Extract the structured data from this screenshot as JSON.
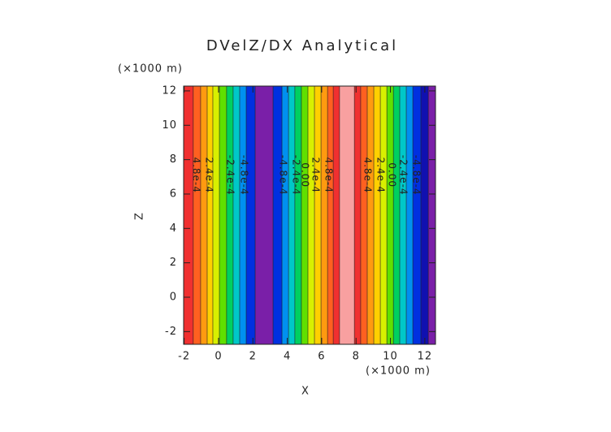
{
  "chart_data": {
    "type": "contour",
    "title": "DVelZ/DX Analytical",
    "xlabel": "X",
    "ylabel": "Z",
    "xunit": "(×1000 m)",
    "yunit": "(×1000 m)",
    "xlim": [
      -2.03,
      12.62
    ],
    "ylim": [
      -2.74,
      12.28
    ],
    "xticks": [
      -2,
      0,
      2,
      4,
      6,
      8,
      10,
      12
    ],
    "yticks": [
      -2,
      0,
      2,
      4,
      6,
      8,
      10,
      12
    ],
    "band_edges": [
      -2.03,
      -1.47,
      -1.04,
      -0.66,
      -0.33,
      0.05,
      0.47,
      0.85,
      1.23,
      1.61,
      2.13,
      3.17,
      3.69,
      4.07,
      4.44,
      4.82,
      5.2,
      5.58,
      5.96,
      6.34,
      6.67,
      7.04,
      7.9,
      8.27,
      8.65,
      9.03,
      9.41,
      9.79,
      10.17,
      10.54,
      10.92,
      11.3,
      11.77,
      12.2,
      12.62
    ],
    "band_colors": [
      "#f03030",
      "#ff6020",
      "#ff9a10",
      "#ffd000",
      "#d8f000",
      "#60e000",
      "#00d060",
      "#00c8c8",
      "#0090f0",
      "#0030e0",
      "#7a1fa8",
      "#0030e0",
      "#0090f0",
      "#00c8c8",
      "#00d060",
      "#60e000",
      "#d8f000",
      "#ffd000",
      "#ff9a10",
      "#ff6020",
      "#f03030",
      "#f8a0a0",
      "#f03030",
      "#ff6020",
      "#ff9a10",
      "#ffd000",
      "#d8f000",
      "#60e000",
      "#00d060",
      "#00c8c8",
      "#0090f0",
      "#0030e0",
      "#1010b0",
      "#7a1fa8"
    ],
    "contour_labels": [
      {
        "text": "4.8e-4",
        "x": -1.32,
        "z": 7.1
      },
      {
        "text": "2.4e-4",
        "x": -0.57,
        "z": 7.1
      },
      {
        "text": "-2.4e-4",
        "x": 0.66,
        "z": 7.1
      },
      {
        "text": "-4.8e-4",
        "x": 1.47,
        "z": 7.1
      },
      {
        "text": "-4.8e-4",
        "x": 3.74,
        "z": 7.1
      },
      {
        "text": "-2.4e-4",
        "x": 4.49,
        "z": 7.1
      },
      {
        "text": "0.00",
        "x": 5.01,
        "z": 7.1
      },
      {
        "text": "2.4e-4",
        "x": 5.63,
        "z": 7.1
      },
      {
        "text": "4.8e-4",
        "x": 6.38,
        "z": 7.1
      },
      {
        "text": "4.8e-4",
        "x": 8.65,
        "z": 7.1
      },
      {
        "text": "2.4e-4",
        "x": 9.41,
        "z": 7.1
      },
      {
        "text": "0.00",
        "x": 10.07,
        "z": 7.1
      },
      {
        "text": "-2.4e-4",
        "x": 10.73,
        "z": 7.1
      },
      {
        "text": "-4.8e-4",
        "x": 11.49,
        "z": 7.1
      }
    ]
  }
}
